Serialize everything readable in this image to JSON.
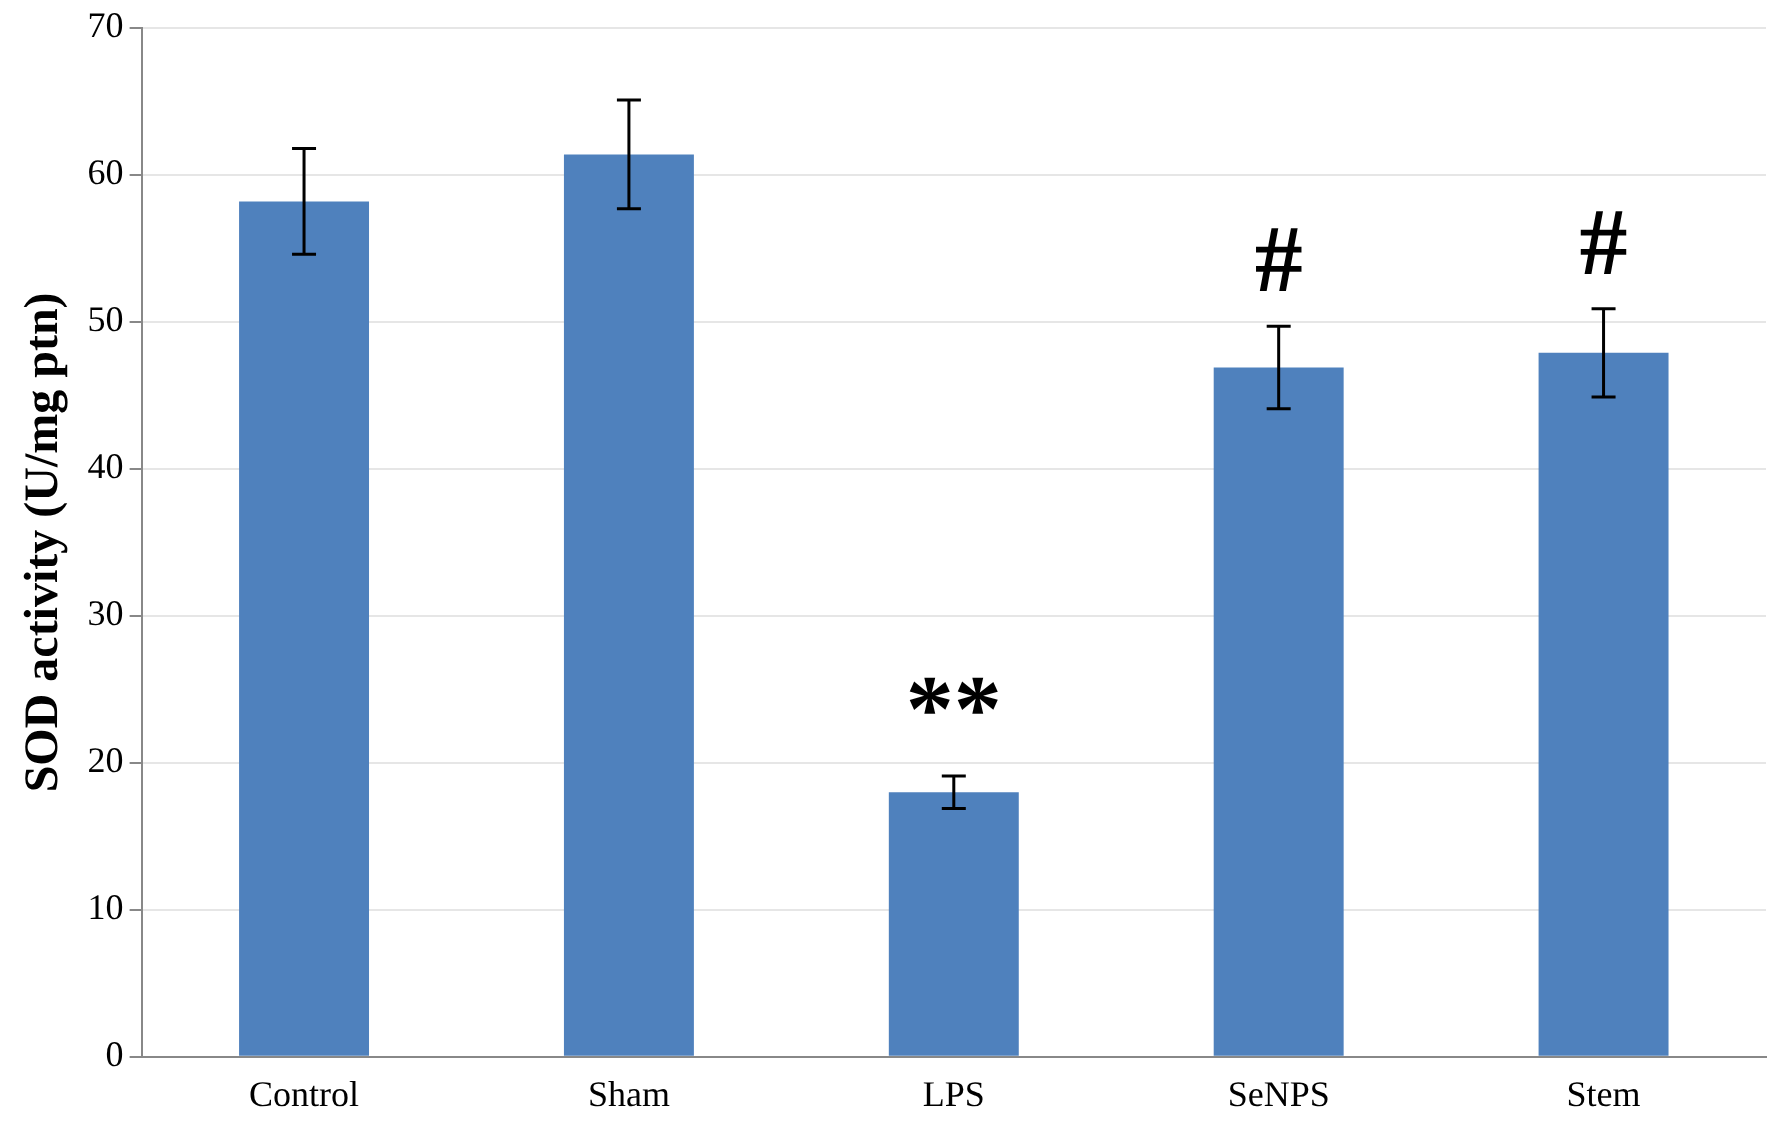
{
  "chart_data": {
    "type": "bar",
    "ylabel": "SOD activity (U/mg ptn)",
    "categories": [
      "Control",
      "Sham",
      "LPS",
      "SeNPS",
      "Stem"
    ],
    "values": [
      58.2,
      61.4,
      18.0,
      46.9,
      47.9
    ],
    "errors": [
      3.6,
      3.7,
      1.1,
      2.8,
      3.0
    ],
    "color": "#4f81bd",
    "ylim": [
      0,
      70
    ],
    "yticks": [
      0,
      10,
      20,
      30,
      40,
      50,
      60,
      70
    ],
    "grid": "y",
    "legend": false,
    "value_labels": [
      null,
      null,
      "**",
      "#",
      "#"
    ]
  }
}
